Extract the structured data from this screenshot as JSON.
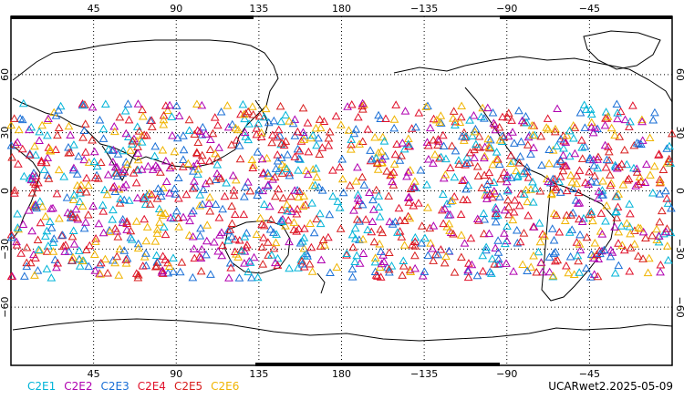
{
  "map": {
    "top_lon_labels": [
      "45",
      "90",
      "135",
      "180",
      "−135",
      "−90",
      "−45"
    ],
    "bottom_lon_labels": [
      "45",
      "90",
      "135",
      "180",
      "−135",
      "−90",
      "−45"
    ],
    "lat_labels": [
      "60",
      "30",
      "0",
      "−30",
      "−60"
    ],
    "lon_range": [
      0,
      360
    ],
    "lat_range": [
      -90,
      90
    ],
    "grid": "dotted",
    "observation_marker": "triangle-outline",
    "observation_band_lat": [
      -45,
      45
    ]
  },
  "legend": [
    {
      "label": "C2E1",
      "color": "#00b4d8"
    },
    {
      "label": "C2E2",
      "color": "#b000b0"
    },
    {
      "label": "C2E3",
      "color": "#1a6fd6"
    },
    {
      "label": "C2E4",
      "color": "#e0102a"
    },
    {
      "label": "C2E5",
      "color": "#d81e1e"
    },
    {
      "label": "C2E6",
      "color": "#f0b400"
    }
  ],
  "footer": {
    "dataset_date": "UCARwet2.2025-05-09"
  }
}
